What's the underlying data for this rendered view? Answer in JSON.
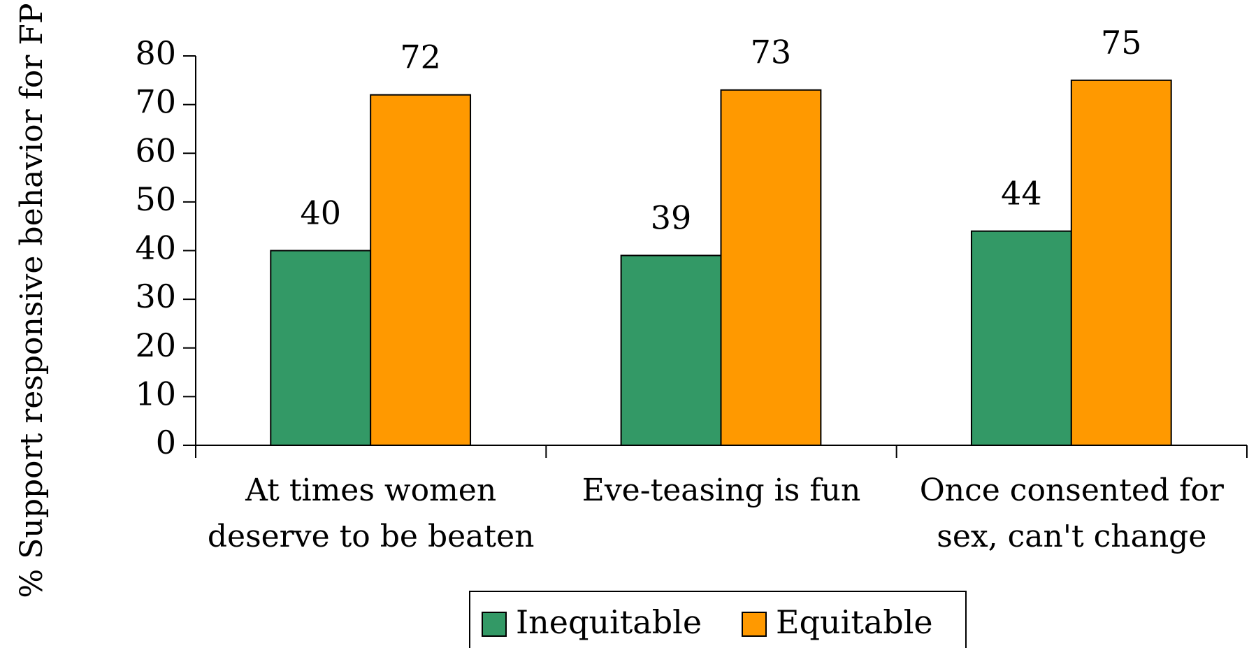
{
  "chart_data": {
    "type": "bar",
    "y_label": "% Support responsive behavior for  FP",
    "categories": [
      "At times women deserve to be beaten",
      "Eve-teasing is fun",
      "Once consented for sex, can't change"
    ],
    "series": [
      {
        "name": "Inequitable",
        "color": "#339966",
        "values": [
          40,
          39,
          44
        ]
      },
      {
        "name": "Equitable",
        "color": "#ff9900",
        "values": [
          72,
          73,
          75
        ]
      }
    ],
    "ylim": [
      0,
      80
    ],
    "yticks": [
      0,
      10,
      20,
      30,
      40,
      50,
      60,
      70,
      80
    ],
    "legend": "bottom"
  }
}
